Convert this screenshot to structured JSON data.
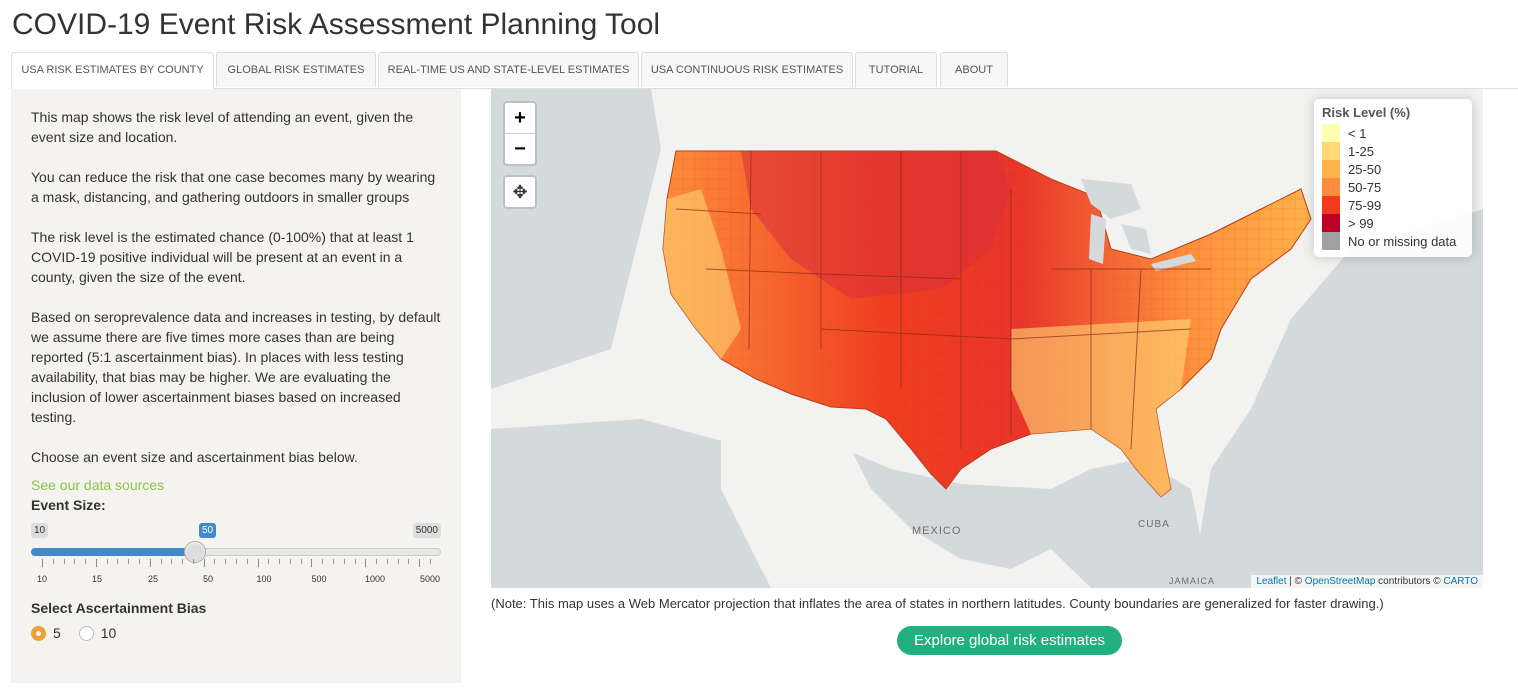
{
  "title": "COVID-19 Event Risk Assessment Planning Tool",
  "tabs": [
    {
      "label": "USA RISK ESTIMATES BY COUNTY",
      "active": true
    },
    {
      "label": "GLOBAL RISK ESTIMATES"
    },
    {
      "label": "REAL-TIME US AND STATE-LEVEL ESTIMATES"
    },
    {
      "label": "USA CONTINUOUS RISK ESTIMATES"
    },
    {
      "label": "TUTORIAL"
    },
    {
      "label": "ABOUT"
    }
  ],
  "sidebar": {
    "p1": "This map shows the risk level of attending an event, given the event size and location.",
    "p2": "You can reduce the risk that one case becomes many by wearing a mask, distancing, and gathering outdoors in smaller groups",
    "p3": "The risk level is the estimated chance (0-100%) that at least 1 COVID-19 positive individual will be present at an event in a county, given the size of the event.",
    "p4": "Based on seroprevalence data and increases in testing, by default we assume there are five times more cases than are being reported (5:1 ascertainment bias). In places with less testing availability, that bias may be higher. We are evaluating the inclusion of lower ascertainment biases based on increased testing.",
    "p5": "Choose an event size and ascertainment bias below.",
    "data_link": "See our data sources",
    "event_size_label": "Event Size:",
    "slider": {
      "min": "10",
      "max": "5000",
      "value": "50",
      "value_fraction": 0.4,
      "tick_labels": [
        "10",
        "15",
        "25",
        "50",
        "100",
        "500",
        "1000",
        "5000"
      ]
    },
    "bias_label": "Select Ascertainment Bias",
    "bias_options": [
      {
        "label": "5",
        "selected": true
      },
      {
        "label": "10",
        "selected": false
      }
    ]
  },
  "map": {
    "zoom_in": "+",
    "zoom_out": "−",
    "legend_title": "Risk Level (%)",
    "legend": [
      {
        "label": "< 1",
        "color": "#ffffb2"
      },
      {
        "label": "1-25",
        "color": "#fed976"
      },
      {
        "label": "25-50",
        "color": "#feb24c"
      },
      {
        "label": "50-75",
        "color": "#fd8d3c"
      },
      {
        "label": "75-99",
        "color": "#f03b20"
      },
      {
        "label": "> 99",
        "color": "#bd0026"
      },
      {
        "label": "No or missing data",
        "color": "#a0a0a0"
      }
    ],
    "labels": {
      "mexico": "MEXICO",
      "cuba": "CUBA",
      "jamaica": "JAMAICA"
    },
    "attribution": {
      "leaflet": "Leaflet",
      "sep1": " | © ",
      "osm": "OpenStreetMap",
      "mid": " contributors © ",
      "carto": "CARTO"
    }
  },
  "note": "(Note: This map uses a Web Mercator projection that inflates the area of states in northern latitudes. County boundaries are generalized for faster drawing.)",
  "explore_button": "Explore global risk estimates"
}
